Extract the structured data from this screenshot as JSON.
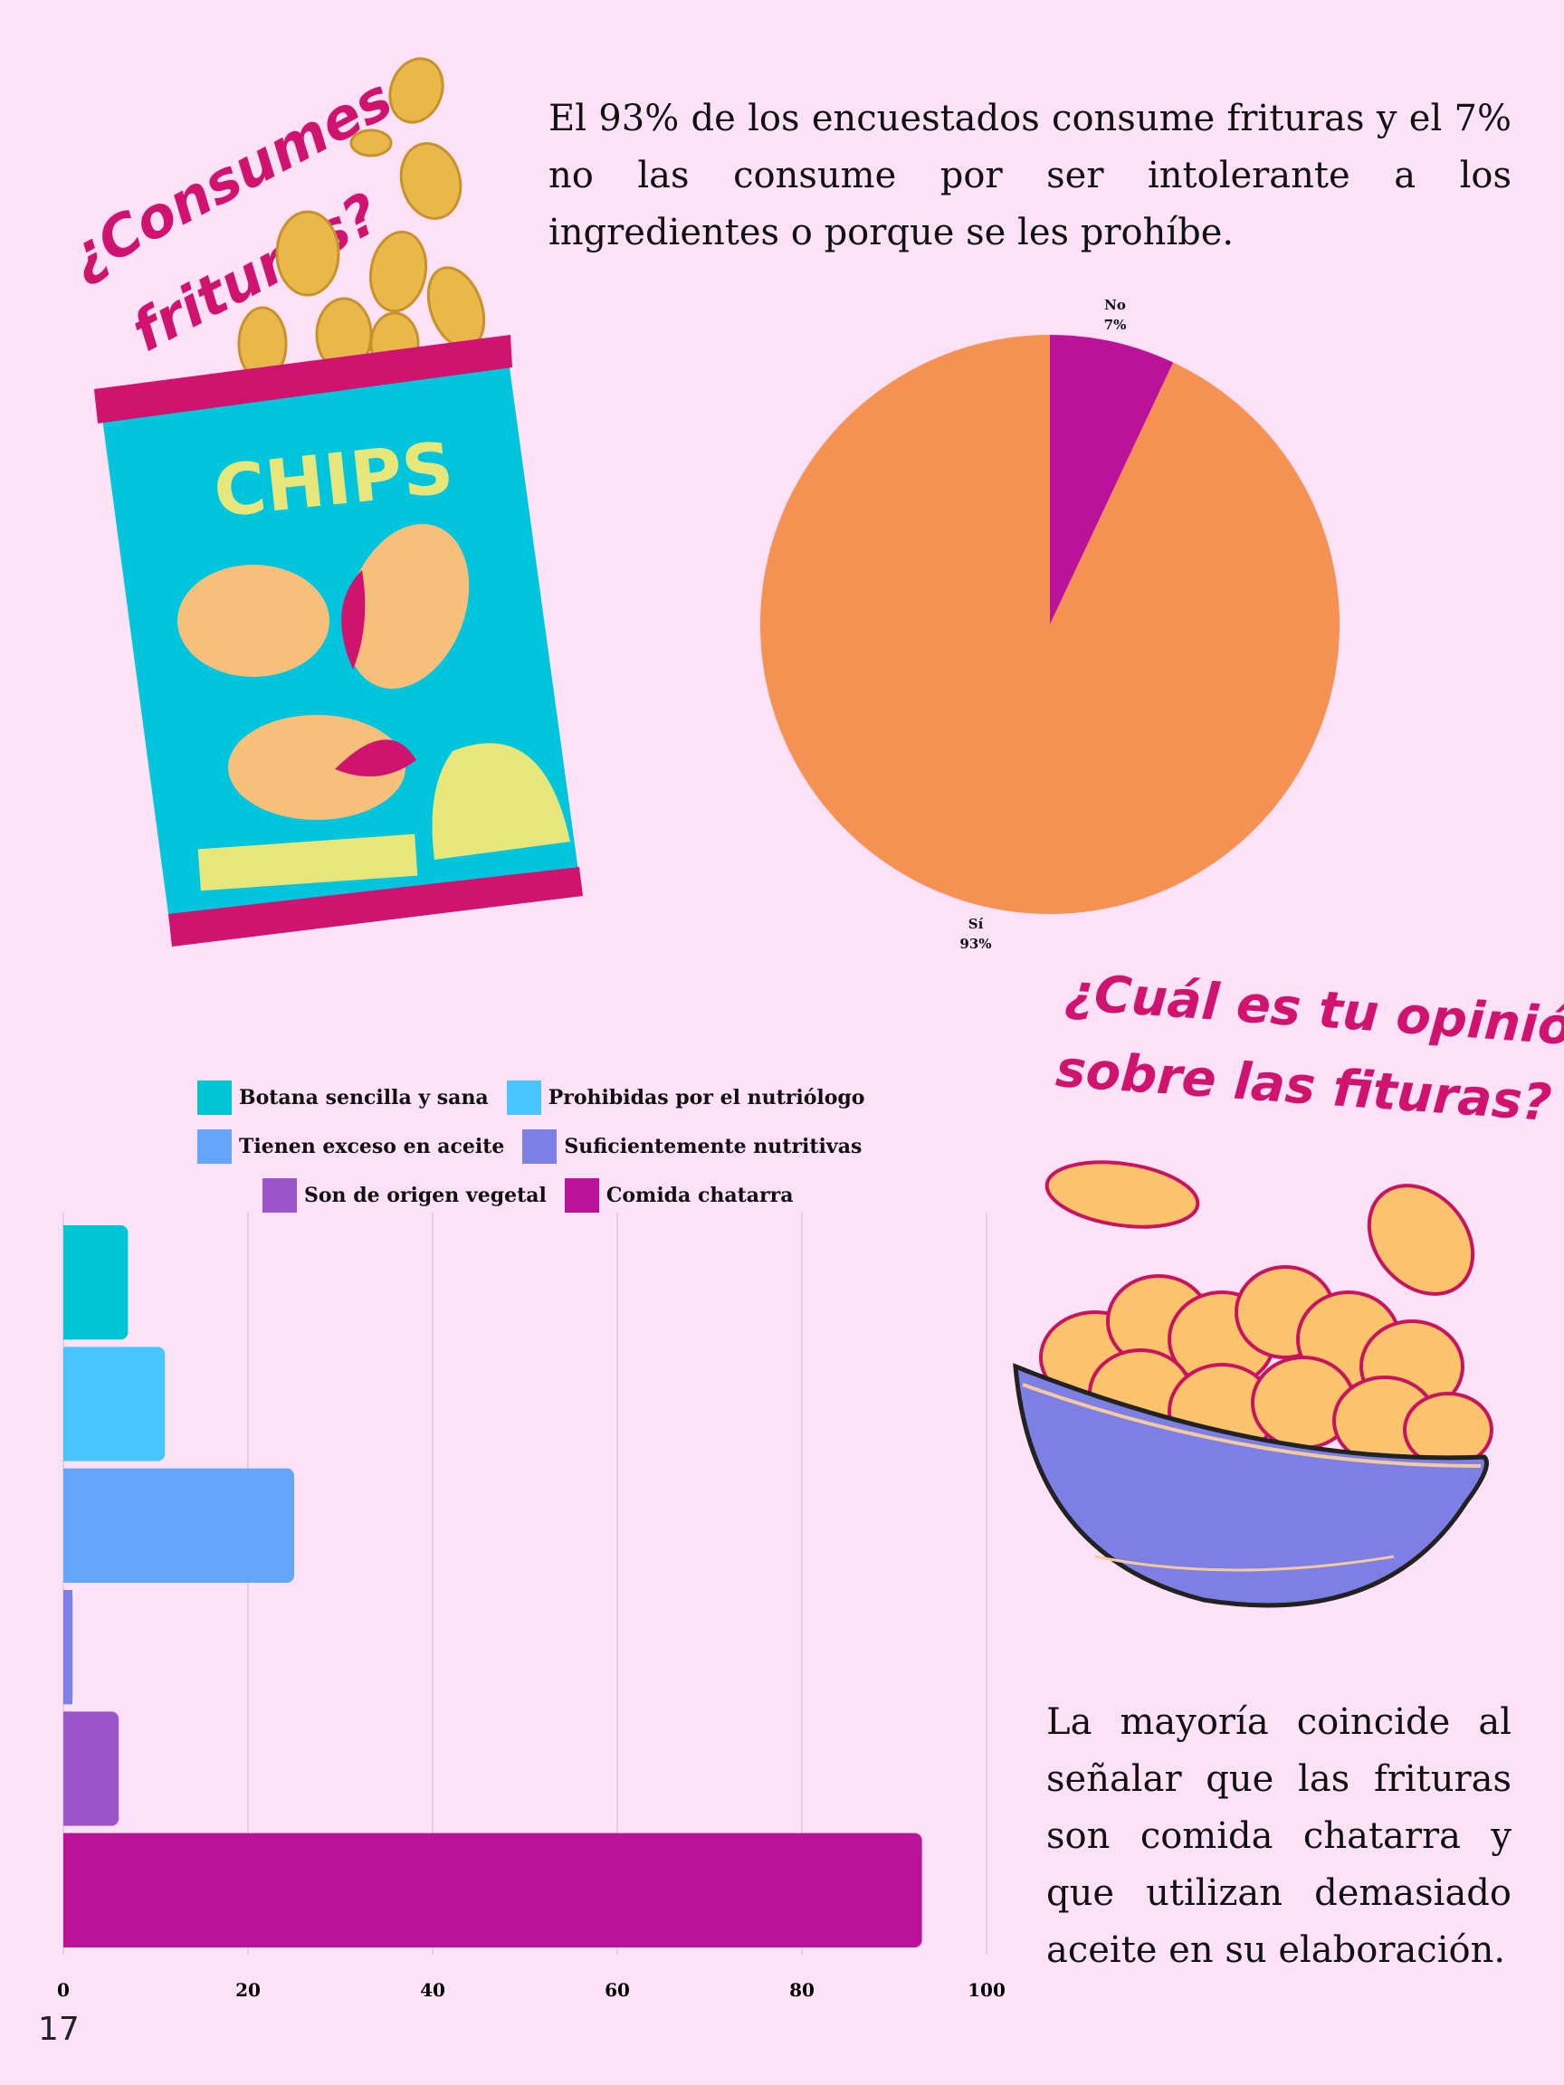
{
  "intro_text": "El 93% de los encuestados  consume frituras y el 7% no las consume por ser intolerante  a los ingredientes o porque se les prohíbe.",
  "heading_1": [
    "¿Consumes",
    "frituras?"
  ],
  "heading_2": [
    "¿Cuál es tu opinión",
    "sobre las fituras?"
  ],
  "chips_label": "CHIPS",
  "conclusion_text": "La mayoría coincide al señalar que las frituras son comida chatarra y que utilizan demasiado aceite en su elaboración.",
  "page_number": "17",
  "icons": [
    "chips-bag-icon",
    "potato-chip-icon",
    "chip-bowl-icon"
  ],
  "chart_data": [
    {
      "type": "pie",
      "slices": [
        {
          "label": "No",
          "pct_label": "7%",
          "value": 7,
          "color": "#bb129a"
        },
        {
          "label": "Sí",
          "pct_label": "93%",
          "value": 93,
          "color": "#f59253"
        }
      ]
    },
    {
      "type": "bar",
      "orientation": "horizontal",
      "categories": [
        "Botana sencilla y sana",
        "Prohibidas por el nutriólogo",
        "Tienen exceso en aceite",
        "Suficientemente nutritivas",
        "Son de origen vegetal",
        "Comida chatarra"
      ],
      "values": [
        7,
        11,
        25,
        1,
        6,
        93
      ],
      "colors": [
        "#00c5d4",
        "#48c4ff",
        "#64a6f8",
        "#7b7fe6",
        "#9d55cc",
        "#bb129a"
      ],
      "xlim": [
        0,
        100
      ],
      "xticks": [
        "0",
        "20",
        "40",
        "60",
        "80",
        "100"
      ],
      "grid": true,
      "legend_position": "top"
    }
  ]
}
